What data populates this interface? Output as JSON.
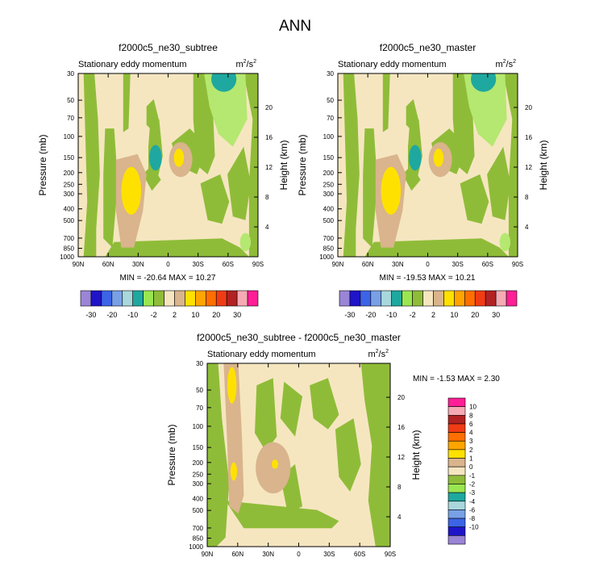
{
  "figure": {
    "title": "ANN",
    "panels": [
      {
        "id": "subtree",
        "case_title": "f2000c5_ne30_subtree",
        "variable_title": "Stationary eddy momentum",
        "units_base": "m",
        "units_exp": "2",
        "units_den": "/s",
        "units_den_exp": "2",
        "ylabel_left": "Pressure (mb)",
        "ylabel_right": "Height (km)",
        "min_max_text": "MIN = -20.64  MAX =  10.27"
      },
      {
        "id": "master",
        "case_title": "f2000c5_ne30_master",
        "variable_title": "Stationary eddy momentum",
        "units_base": "m",
        "units_exp": "2",
        "units_den": "/s",
        "units_den_exp": "2",
        "ylabel_left": "Pressure (mb)",
        "ylabel_right": "Height (km)",
        "min_max_text": "MIN = -19.53  MAX =  10.21"
      },
      {
        "id": "diff",
        "case_title": "f2000c5_ne30_subtree - f2000c5_ne30_master",
        "variable_title": "Stationary eddy momentum",
        "units_base": "m",
        "units_exp": "2",
        "units_den": "/s",
        "units_den_exp": "2",
        "ylabel_left": "Pressure (mb)",
        "ylabel_right": "Height (km)",
        "min_max_text": "MIN =  -1.53  MAX =   2.30"
      }
    ]
  },
  "chart_data": [
    {
      "type": "heatmap",
      "title": "f2000c5_ne30_subtree",
      "subtitle": "Stationary eddy momentum",
      "units": "m2/s2",
      "xlabel": "",
      "ylabel": "Pressure (mb)",
      "ylabel_right": "Height (km)",
      "x_ticks": [
        "90N",
        "60N",
        "30N",
        "0",
        "30S",
        "60S",
        "90S"
      ],
      "y_ticks": [
        "30",
        "50",
        "70",
        "100",
        "150",
        "200",
        "250",
        "300",
        "400",
        "500",
        "700",
        "850",
        "1000"
      ],
      "y_right_ticks": [
        "20",
        "16",
        "12",
        "8",
        "4"
      ],
      "xlim": [
        90,
        -90
      ],
      "ylim_pressure": [
        1000,
        30
      ],
      "min": -20.64,
      "max": 10.27,
      "colorbar_levels": [
        "-30",
        "-20",
        "-10",
        "-2",
        "2",
        "10",
        "20",
        "30"
      ],
      "colorbar_colors": [
        "#9a85d6",
        "#1f14c8",
        "#3c64e6",
        "#78a0e6",
        "#a8d8dc",
        "#1fa89f",
        "#9ae650",
        "#8fbc38",
        "#f5e6c0",
        "#d9b48c",
        "#ffe100",
        "#ffa500",
        "#ff6e00",
        "#f03c14",
        "#b22222",
        "#f5aab4",
        "#ff1e96"
      ]
    },
    {
      "type": "heatmap",
      "title": "f2000c5_ne30_master",
      "subtitle": "Stationary eddy momentum",
      "units": "m2/s2",
      "xlabel": "",
      "ylabel": "Pressure (mb)",
      "ylabel_right": "Height (km)",
      "x_ticks": [
        "90N",
        "60N",
        "30N",
        "0",
        "30S",
        "60S",
        "90S"
      ],
      "y_ticks": [
        "30",
        "50",
        "70",
        "100",
        "150",
        "200",
        "250",
        "300",
        "400",
        "500",
        "700",
        "850",
        "1000"
      ],
      "y_right_ticks": [
        "20",
        "16",
        "12",
        "8",
        "4"
      ],
      "xlim": [
        90,
        -90
      ],
      "ylim_pressure": [
        1000,
        30
      ],
      "min": -19.53,
      "max": 10.21,
      "colorbar_levels": [
        "-30",
        "-20",
        "-10",
        "-2",
        "2",
        "10",
        "20",
        "30"
      ]
    },
    {
      "type": "heatmap",
      "title": "f2000c5_ne30_subtree - f2000c5_ne30_master",
      "subtitle": "Stationary eddy momentum",
      "units": "m2/s2",
      "xlabel": "",
      "ylabel": "Pressure (mb)",
      "ylabel_right": "Height (km)",
      "x_ticks": [
        "90N",
        "60N",
        "30N",
        "0",
        "30S",
        "60S",
        "90S"
      ],
      "y_ticks": [
        "30",
        "50",
        "70",
        "100",
        "150",
        "200",
        "250",
        "300",
        "400",
        "500",
        "700",
        "850",
        "1000"
      ],
      "y_right_ticks": [
        "20",
        "16",
        "12",
        "8",
        "4"
      ],
      "xlim": [
        90,
        -90
      ],
      "ylim_pressure": [
        1000,
        30
      ],
      "min": -1.53,
      "max": 2.3,
      "colorbar_levels": [
        "10",
        "8",
        "6",
        "4",
        "3",
        "2",
        "1",
        "0",
        "-1",
        "-2",
        "-3",
        "-4",
        "-6",
        "-8",
        "-10"
      ],
      "colorbar_colors": [
        "#ff1e96",
        "#f5aab4",
        "#b22222",
        "#f03c14",
        "#ff6e00",
        "#ffa500",
        "#ffe100",
        "#d9b48c",
        "#f5e6c0",
        "#8fbc38",
        "#9ae650",
        "#1fa89f",
        "#a8d8dc",
        "#78a0e6",
        "#3c64e6",
        "#1f14c8",
        "#9a85d6"
      ]
    }
  ]
}
